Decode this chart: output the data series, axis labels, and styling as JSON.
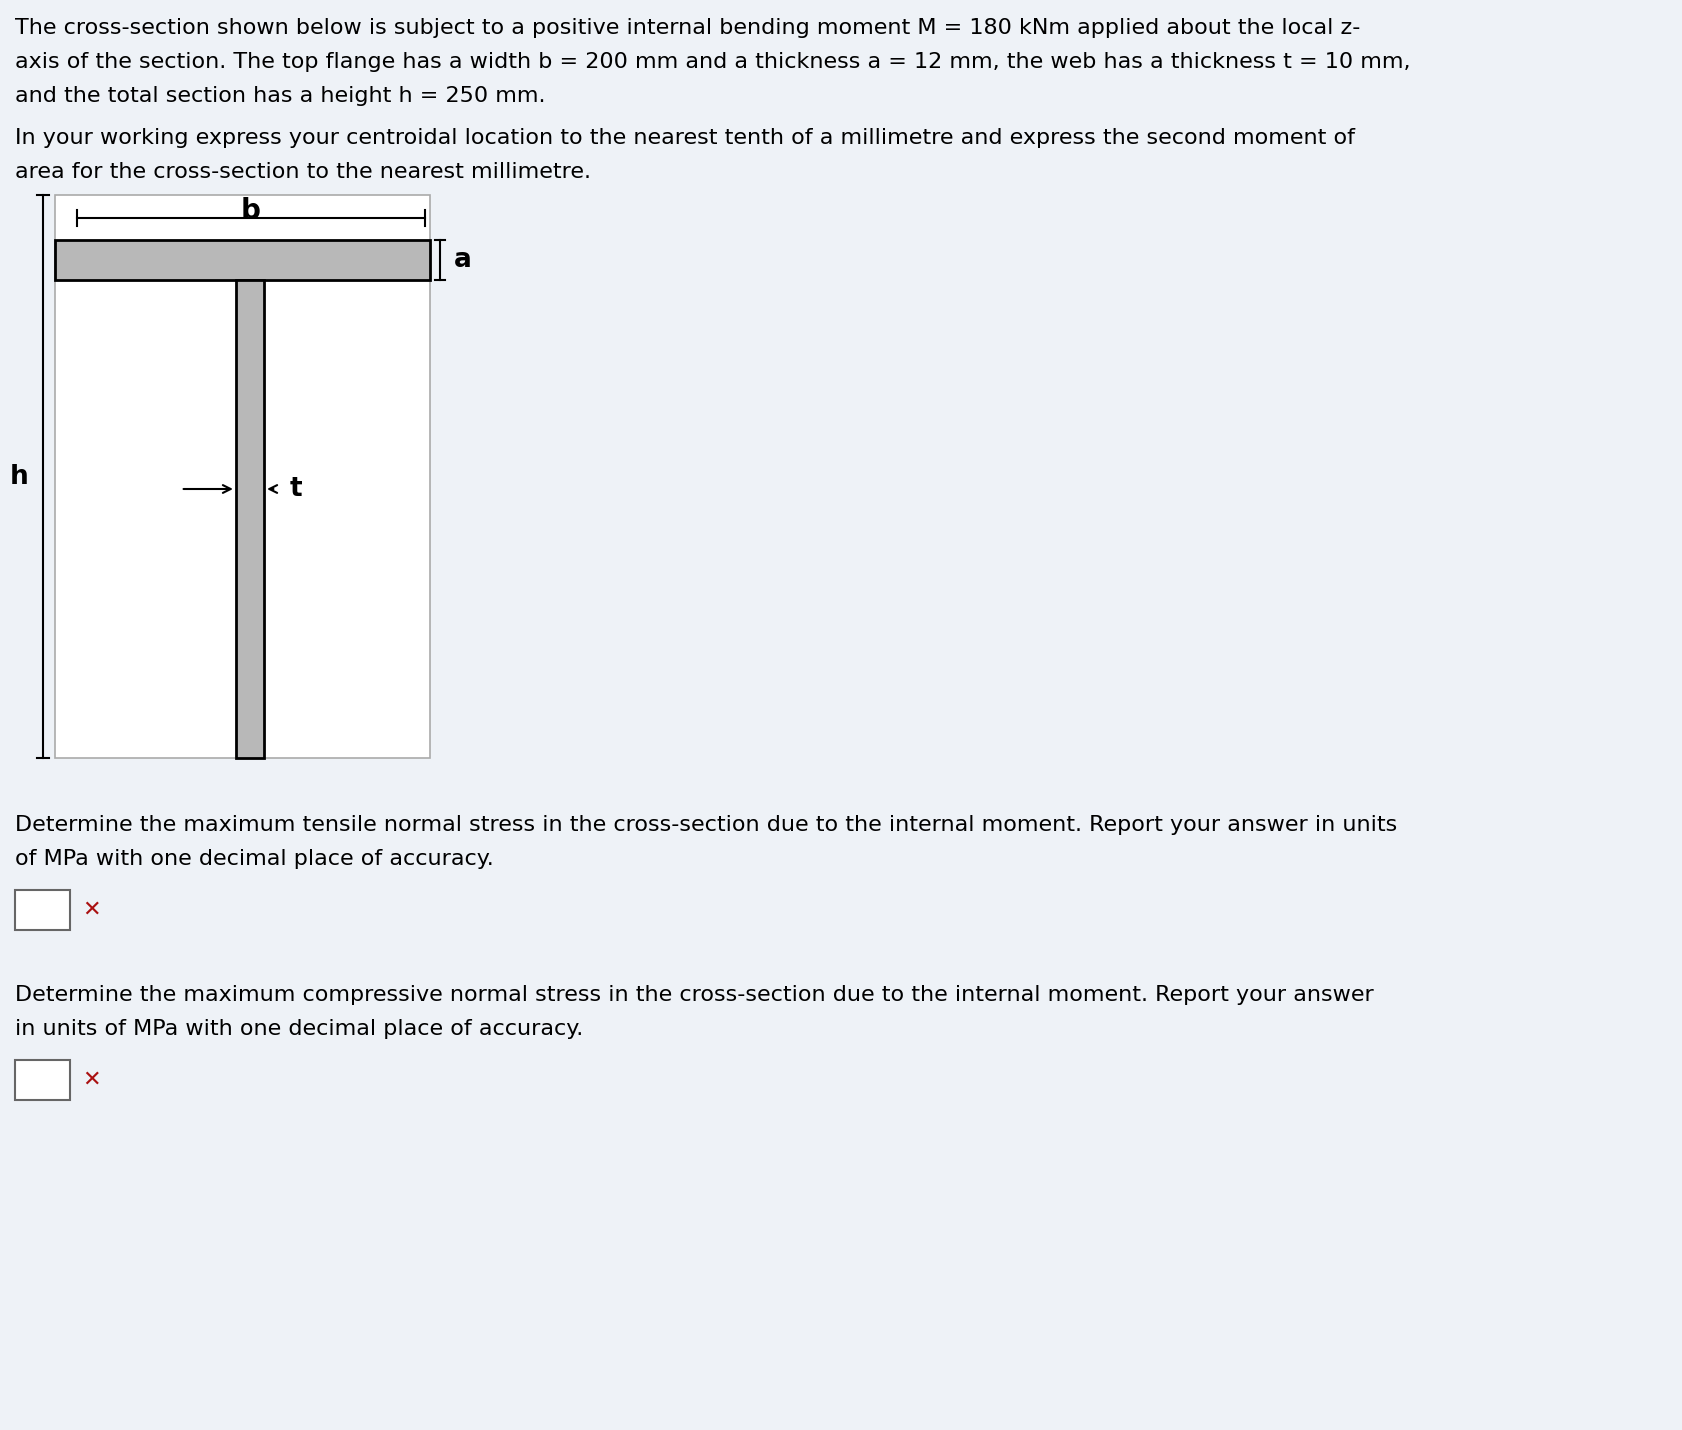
{
  "bg_color": "#eef2f7",
  "text_color": "#000000",
  "section_fill": "#b8b8b8",
  "section_line": "#000000",
  "fs_main": 16,
  "fs_label": 19,
  "line1": "The cross-section shown below is subject to a positive internal bending moment M = 180 kNm applied about the local z-",
  "line2": "axis of the section. The top flange has a width b = 200 mm and a thickness a = 12 mm, the web has a thickness t = 10 mm,",
  "line3": "and the total section has a height h = 250 mm.",
  "line4": "In your working express your centroidal location to the nearest tenth of a millimetre and express the second moment of",
  "line5": "area for the cross-section to the nearest millimetre.",
  "line6": "Determine the maximum tensile normal stress in the cross-section due to the internal moment. Report your answer in units",
  "line7": "of MPa with one decimal place of accuracy.",
  "line8": "Determine the maximum compressive normal stress in the cross-section due to the internal moment. Report your answer",
  "line9": "in units of MPa with one decimal place of accuracy.",
  "label_b": "b",
  "label_a": "a",
  "label_h": "h",
  "label_t": "t"
}
